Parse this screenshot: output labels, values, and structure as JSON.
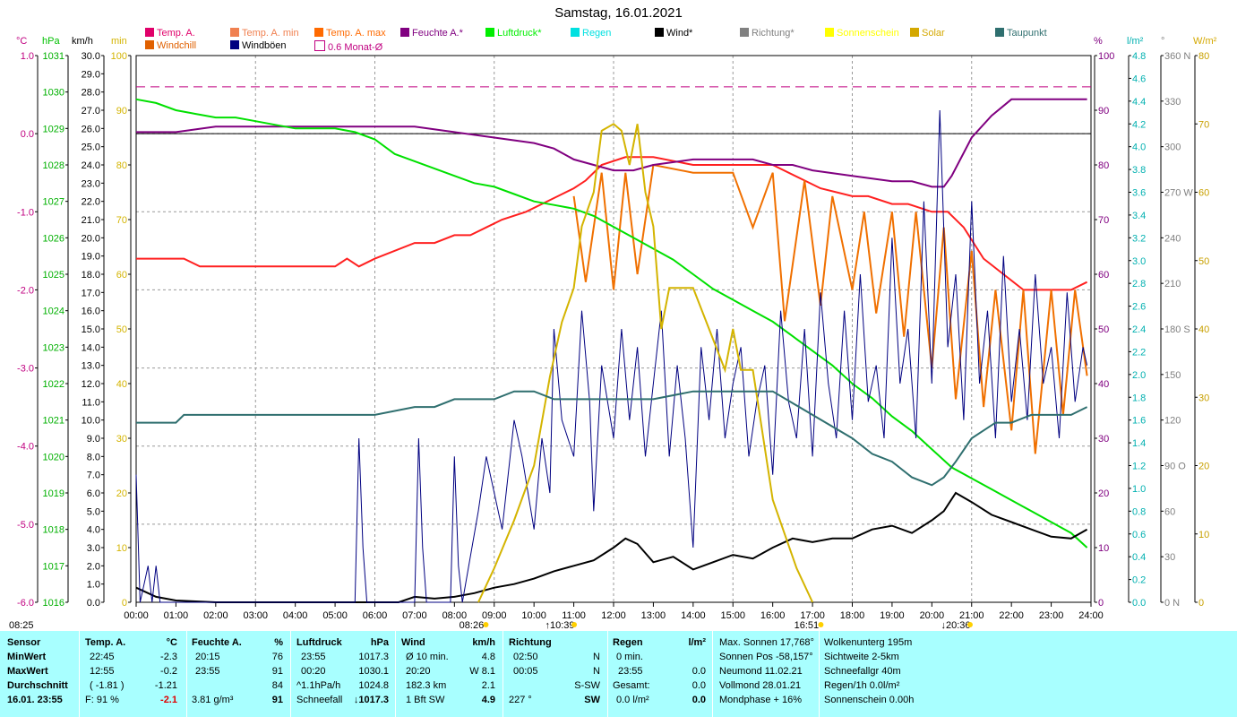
{
  "title": "Samstag, 16.01.2021",
  "legend": [
    {
      "label": "Temp. A.",
      "color": "#e0006a"
    },
    {
      "label": "Temp. A. min",
      "color": "#f08050"
    },
    {
      "label": "Temp. A. max",
      "color": "#ff6a00"
    },
    {
      "label": "Feuchte A.*",
      "color": "#800080"
    },
    {
      "label": "Luftdruck*",
      "color": "#00ee00"
    },
    {
      "label": "Regen",
      "color": "#00e0e0"
    },
    {
      "label": "Wind*",
      "color": "#000000"
    },
    {
      "label": "Richtung*",
      "color": "#808080"
    },
    {
      "label": "Sonnenschein",
      "color": "#ffff00"
    },
    {
      "label": "Solar",
      "color": "#d4a800"
    },
    {
      "label": "Taupunkt",
      "color": "#2f6f6f"
    },
    {
      "label": "Windchill",
      "color": "#e06000"
    },
    {
      "label": "Windböen",
      "color": "#000080"
    },
    {
      "label": "0.6 Monat-Ø",
      "color": "#c00080"
    }
  ],
  "units": {
    "temp": "°C",
    "hpa": "hPa",
    "kmh": "km/h",
    "min": "min",
    "pct": "%",
    "lm2": "l/m²",
    "deg": "°",
    "wm2": "W/m²"
  },
  "chart_data": {
    "type": "line",
    "x_ticks": [
      "00:00",
      "01:00",
      "02:00",
      "03:00",
      "04:00",
      "05:00",
      "06:00",
      "07:00",
      "08:00",
      "09:00",
      "10:00",
      "11:00",
      "12:00",
      "13:00",
      "14:00",
      "15:00",
      "16:00",
      "17:00",
      "18:00",
      "19:00",
      "20:00",
      "21:00",
      "22:00",
      "23:00",
      "24:00"
    ],
    "axes": {
      "temp": {
        "ticks": [
          "1.0",
          "0.0",
          "-1.0",
          "-2.0",
          "-3.0",
          "-4.0",
          "-5.0",
          "-6.0"
        ],
        "range": [
          -6,
          1
        ]
      },
      "hpa": {
        "ticks": [
          "1031",
          "1030",
          "1029",
          "1028",
          "1027",
          "1026",
          "1025",
          "1024",
          "1023",
          "1022",
          "1021",
          "1020",
          "1019",
          "1018",
          "1017",
          "1016"
        ],
        "range": [
          1016,
          1031
        ]
      },
      "kmh": {
        "ticks": [
          "30.0",
          "29.0",
          "28.0",
          "27.0",
          "26.0",
          "25.0",
          "24.0",
          "23.0",
          "22.0",
          "21.0",
          "20.0",
          "19.0",
          "18.0",
          "17.0",
          "16.0",
          "15.0",
          "14.0",
          "13.0",
          "12.0",
          "11.0",
          "10.0",
          "9.0",
          "8.0",
          "7.0",
          "6.0",
          "5.0",
          "4.0",
          "3.0",
          "2.0",
          "1.0",
          "0.0"
        ],
        "range": [
          0,
          30
        ]
      },
      "min": {
        "ticks": [
          "100",
          "90",
          "80",
          "70",
          "60",
          "50",
          "40",
          "30",
          "20",
          "10",
          "0"
        ],
        "range": [
          0,
          100
        ]
      },
      "pct": {
        "ticks": [
          "100",
          "90",
          "80",
          "70",
          "60",
          "50",
          "40",
          "30",
          "20",
          "10",
          "0"
        ],
        "range": [
          0,
          100
        ]
      },
      "lm2": {
        "ticks": [
          "4.8",
          "4.6",
          "4.4",
          "4.2",
          "4.0",
          "3.8",
          "3.6",
          "3.4",
          "3.2",
          "3.0",
          "2.8",
          "2.6",
          "2.4",
          "2.2",
          "2.0",
          "1.8",
          "1.6",
          "1.4",
          "1.2",
          "1.0",
          "0.8",
          "0.6",
          "0.4",
          "0.2",
          "0.0"
        ],
        "range": [
          0,
          5
        ]
      },
      "deg": {
        "ticks": [
          "360 N",
          "330",
          "300",
          "270 W",
          "240",
          "210",
          "180 S",
          "150",
          "120",
          "90 O",
          "60",
          "30",
          "0 N"
        ],
        "range": [
          0,
          360
        ]
      },
      "wm2": {
        "ticks": [
          "80",
          "70",
          "60",
          "50",
          "40",
          "30",
          "20",
          "10",
          "0"
        ],
        "range": [
          0,
          80
        ]
      }
    },
    "series": [
      {
        "name": "Temp. A.",
        "axis": "temp",
        "color": "#ff2020",
        "x": [
          0,
          0.5,
          1.2,
          1.6,
          2.5,
          5,
          5.3,
          5.6,
          6,
          7,
          7.5,
          8,
          8.4,
          8.8,
          9.2,
          9.8,
          10.2,
          10.6,
          11,
          11.3,
          11.7,
          12.3,
          13,
          14,
          14.3,
          14.8,
          15,
          15.5,
          16,
          16.8,
          17.2,
          18,
          18.4,
          19,
          19.4,
          20,
          20.4,
          20.8,
          21.3,
          21.8,
          22.3,
          23,
          23.5,
          23.9
        ],
        "y": [
          -1.6,
          -1.6,
          -1.6,
          -1.7,
          -1.7,
          -1.7,
          -1.6,
          -1.7,
          -1.6,
          -1.4,
          -1.4,
          -1.3,
          -1.3,
          -1.2,
          -1.1,
          -1.0,
          -0.9,
          -0.8,
          -0.7,
          -0.6,
          -0.4,
          -0.3,
          -0.3,
          -0.4,
          -0.4,
          -0.4,
          -0.4,
          -0.4,
          -0.4,
          -0.6,
          -0.7,
          -0.8,
          -0.8,
          -0.9,
          -0.9,
          -1.0,
          -1.0,
          -1.2,
          -1.6,
          -1.8,
          -2.0,
          -2.0,
          -2.0,
          -1.9
        ]
      },
      {
        "name": "Windchill",
        "axis": "temp",
        "color": "#f07000",
        "x": [
          11,
          11.3,
          11.7,
          12,
          12.3,
          12.6,
          13,
          14,
          15,
          15.5,
          16,
          16.3,
          16.8,
          17.2,
          17.5,
          18,
          18.3,
          18.6,
          19,
          19.3,
          19.6,
          20,
          20.3,
          20.6,
          21,
          21.3,
          21.6,
          22,
          22.3,
          22.6,
          23,
          23.3,
          23.6,
          23.9
        ],
        "y": [
          -0.8,
          -1.9,
          -0.5,
          -2.0,
          -0.5,
          -1.8,
          -0.4,
          -0.5,
          -0.5,
          -1.2,
          -0.5,
          -2.4,
          -0.6,
          -2.2,
          -0.8,
          -2.0,
          -1.0,
          -2.3,
          -1.0,
          -2.6,
          -1.0,
          -3.0,
          -1.2,
          -3.4,
          -1.5,
          -3.5,
          -2.0,
          -3.8,
          -2.0,
          -4.1,
          -2.0,
          -3.6,
          -2.0,
          -3.1
        ]
      },
      {
        "name": "Feuchte A.*",
        "axis": "pct",
        "color": "#800080",
        "x": [
          0,
          1,
          2,
          3,
          4,
          5,
          6,
          7,
          8,
          9,
          10,
          10.5,
          11,
          11.5,
          12,
          12.5,
          13,
          14,
          14.5,
          15,
          15.5,
          16,
          16.5,
          17,
          18,
          19,
          19.5,
          20,
          20.3,
          20.5,
          21,
          21.5,
          22,
          22.5,
          23,
          23.9
        ],
        "y": [
          86,
          86,
          87,
          87,
          87,
          87,
          87,
          87,
          86,
          85,
          84,
          83,
          81,
          80,
          79,
          79,
          80,
          81,
          81,
          81,
          81,
          80,
          80,
          79,
          78,
          77,
          77,
          76,
          76,
          78,
          85,
          89,
          92,
          92,
          92,
          92
        ]
      },
      {
        "name": "Luftdruck*",
        "axis": "hpa",
        "color": "#00e000",
        "x": [
          0,
          0.5,
          1,
          1.5,
          2,
          2.5,
          3,
          3.5,
          4,
          4.5,
          5,
          5.5,
          6,
          6.5,
          7,
          7.5,
          8,
          8.5,
          9,
          9.5,
          10,
          10.5,
          11,
          11.5,
          12,
          12.5,
          13,
          13.5,
          14,
          14.5,
          15,
          15.5,
          16,
          16.5,
          17,
          17.5,
          18,
          18.5,
          19,
          19.5,
          20,
          20.5,
          21,
          21.5,
          22,
          22.5,
          23,
          23.5,
          23.9
        ],
        "y": [
          1029.8,
          1029.7,
          1029.5,
          1029.4,
          1029.3,
          1029.3,
          1029.2,
          1029.1,
          1029.0,
          1029.0,
          1029.0,
          1028.9,
          1028.7,
          1028.3,
          1028.1,
          1027.9,
          1027.7,
          1027.5,
          1027.4,
          1027.2,
          1027.0,
          1026.9,
          1026.8,
          1026.6,
          1026.3,
          1026.0,
          1025.7,
          1025.4,
          1025.0,
          1024.6,
          1024.3,
          1024.0,
          1023.7,
          1023.3,
          1022.9,
          1022.5,
          1022.0,
          1021.6,
          1021.1,
          1020.7,
          1020.2,
          1019.7,
          1019.4,
          1019.1,
          1018.8,
          1018.5,
          1018.2,
          1017.9,
          1017.5
        ]
      },
      {
        "name": "Wind*",
        "axis": "kmh",
        "color": "#000000",
        "x": [
          0,
          0.5,
          1,
          2,
          6,
          6.6,
          7,
          7.5,
          8,
          8.5,
          9,
          9.5,
          10,
          10.5,
          11,
          11.5,
          12,
          12.3,
          12.6,
          13,
          13.5,
          14,
          14.5,
          15,
          15.5,
          16,
          16.5,
          17,
          17.5,
          18,
          18.5,
          19,
          19.5,
          20,
          20.3,
          20.6,
          21,
          21.5,
          22,
          22.5,
          23,
          23.5,
          23.9
        ],
        "y": [
          0.8,
          0.3,
          0.1,
          0,
          0,
          0,
          0.3,
          0.2,
          0.3,
          0.5,
          0.8,
          1.0,
          1.3,
          1.7,
          2.0,
          2.3,
          3.0,
          3.5,
          3.2,
          2.2,
          2.5,
          1.8,
          2.2,
          2.6,
          2.4,
          3.0,
          3.5,
          3.3,
          3.5,
          3.5,
          4.0,
          4.2,
          3.8,
          4.5,
          5.0,
          6.0,
          5.5,
          4.8,
          4.4,
          4.0,
          3.6,
          3.5,
          4.0
        ]
      },
      {
        "name": "Windböen",
        "axis": "kmh",
        "color": "#000080",
        "x": [
          0,
          0.1,
          0.2,
          0.3,
          0.4,
          0.5,
          0.6,
          5.5,
          5.6,
          5.7,
          5.8,
          7,
          7.1,
          7.2,
          7.3,
          7.9,
          8,
          8.1,
          8.2,
          8.6,
          8.8,
          9,
          9.2,
          9.5,
          9.7,
          10,
          10.2,
          10.4,
          10.5,
          10.7,
          11,
          11.2,
          11.4,
          11.5,
          11.7,
          12,
          12.2,
          12.4,
          12.6,
          12.8,
          13,
          13.2,
          13.4,
          13.6,
          13.8,
          14,
          14.2,
          14.4,
          14.6,
          14.8,
          15,
          15.2,
          15.4,
          15.6,
          15.8,
          16,
          16.2,
          16.4,
          16.6,
          16.8,
          17,
          17.2,
          17.4,
          17.6,
          17.8,
          18,
          18.2,
          18.4,
          18.6,
          18.8,
          19,
          19.2,
          19.4,
          19.6,
          19.8,
          20,
          20.2,
          20.4,
          20.6,
          20.8,
          21,
          21.2,
          21.4,
          21.6,
          21.8,
          22,
          22.2,
          22.4,
          22.6,
          22.8,
          23,
          23.2,
          23.4,
          23.6,
          23.8,
          23.9
        ],
        "y": [
          7,
          0,
          1,
          2,
          0,
          2,
          0,
          0,
          9,
          3,
          0,
          0,
          9,
          3,
          0,
          0,
          8,
          2,
          0,
          5,
          8,
          6,
          4,
          10,
          8,
          4,
          9,
          6,
          15,
          10,
          8,
          16,
          11,
          5,
          13,
          9,
          15,
          10,
          14,
          8,
          12,
          16,
          8,
          13,
          9,
          3,
          14,
          10,
          15,
          9,
          12,
          14,
          8,
          11,
          13,
          7,
          16,
          11,
          9,
          15,
          8,
          17,
          12,
          9,
          16,
          10,
          18,
          11,
          13,
          9,
          20,
          12,
          15,
          9,
          22,
          12,
          27,
          14,
          18,
          10,
          22,
          12,
          16,
          9,
          19,
          11,
          15,
          10,
          18,
          12,
          14,
          9,
          17,
          11,
          14,
          13
        ]
      },
      {
        "name": "Solar",
        "axis": "wm2",
        "color": "#d4b400",
        "x": [
          8.6,
          9,
          9.5,
          10,
          10.4,
          10.7,
          11,
          11.2,
          11.5,
          11.7,
          12,
          12.2,
          12.4,
          12.6,
          12.8,
          13,
          13.2,
          13.4,
          13.6,
          13.8,
          14,
          14.4,
          14.8,
          15,
          15.2,
          15.5,
          16,
          16.3,
          16.6,
          17
        ],
        "y": [
          0,
          5,
          12,
          20,
          33,
          41,
          46,
          55,
          60,
          69,
          70,
          69,
          64,
          70,
          60,
          55,
          40,
          46,
          46,
          46,
          46,
          40,
          34,
          40,
          34,
          34,
          15,
          10,
          5,
          0
        ]
      },
      {
        "name": "Taupunkt",
        "axis": "temp",
        "color": "#2f6f6f",
        "x": [
          0,
          1,
          1.2,
          1.5,
          2,
          2.5,
          5,
          5.3,
          5.6,
          6,
          7,
          7.5,
          8,
          8.5,
          9,
          9.5,
          10,
          10.5,
          11,
          12,
          13,
          14,
          14.5,
          15,
          15.5,
          16,
          17,
          18,
          18.5,
          19,
          19.5,
          20,
          20.3,
          20.6,
          21,
          21.3,
          21.6,
          22,
          22.5,
          23,
          23.5,
          23.9
        ],
        "y": [
          -3.7,
          -3.7,
          -3.6,
          -3.6,
          -3.6,
          -3.6,
          -3.6,
          -3.6,
          -3.6,
          -3.6,
          -3.5,
          -3.5,
          -3.4,
          -3.4,
          -3.4,
          -3.3,
          -3.3,
          -3.4,
          -3.4,
          -3.4,
          -3.4,
          -3.3,
          -3.3,
          -3.3,
          -3.3,
          -3.3,
          -3.6,
          -3.9,
          -4.1,
          -4.2,
          -4.4,
          -4.5,
          -4.4,
          -4.2,
          -3.9,
          -3.8,
          -3.7,
          -3.7,
          -3.6,
          -3.6,
          -3.6,
          -3.5
        ]
      },
      {
        "name": "0.6 Monat-Ø",
        "axis": "temp",
        "color": "#c00080",
        "x": [
          0,
          24
        ],
        "y": [
          0.6,
          0.6
        ]
      }
    ],
    "sun_marks": [
      {
        "label": "08:26",
        "t": 8.43
      },
      {
        "label": "↑10:39",
        "t": 10.65
      },
      {
        "label": "16:51",
        "t": 16.85
      },
      {
        "label": "↓20:36",
        "t": 20.6
      }
    ],
    "time_left": "08:25"
  },
  "panel": {
    "rows": [
      "Sensor",
      "MinWert",
      "MaxWert",
      "Durchschnitt",
      "16.01. 23:55"
    ],
    "temp": {
      "head": "Temp. A.",
      "unit": "°C",
      "min_t": "22:45",
      "min": "-2.3",
      "max_t": "12:55",
      "max": "-0.2",
      "avg": "( -1.81 )",
      "avg2": "-1.21",
      "cur_l": "F: 91 %",
      "cur": "-2.1"
    },
    "hum": {
      "head": "Feuchte A.",
      "unit": "%",
      "min_t": "20:15",
      "min": "76",
      "max_t": "23:55",
      "max": "91",
      "avg": "84",
      "cur_l": "3.81 g/m³",
      "cur": "91"
    },
    "press": {
      "head": "Luftdruck",
      "unit": "hPa",
      "min_t": "23:55",
      "min": "1017.3",
      "max_t": "00:20",
      "max": "1030.1",
      "avg_l": "^1.1hPa/h",
      "avg": "1024.8",
      "cur_l": "Schneefall",
      "cur": "↓1017.3"
    },
    "wind": {
      "head": "Wind",
      "unit": "km/h",
      "r1l": "Ø 10 min.",
      "r1": "4.8",
      "r2l": "20:20",
      "r2": "W 8.1",
      "r3l": "182.3 km",
      "r3": "2.1",
      "r4l": "1 Bft SW",
      "r4": "4.9"
    },
    "dir": {
      "head": "Richtung",
      "r1l": "02:50",
      "r1": "N",
      "r2l": "00:05",
      "r2": "N",
      "r3": "S-SW",
      "r4l": "227 °",
      "r4": "SW"
    },
    "rain": {
      "head": "Regen",
      "unit": "l/m²",
      "r1l": "0 min.",
      "r2l": "23:55",
      "r2": "0.0",
      "r3l": "Gesamt:",
      "r3": "0.0",
      "r4l": "0.0 l/m²",
      "r4": "0.0"
    },
    "astro": [
      "Max. Sonnen 17,768°",
      "Sonnen Pos  -58,157°",
      "Neumond      11.02.21",
      "Vollmond      28.01.21",
      "Mondphase      + 16%"
    ],
    "clouds": [
      "Wolkenunterg   195m",
      "Sichtweite       2-5km",
      "Schneefallgr       40m",
      "Regen/1h      0.0l/m²",
      "Sonnenschein  0.00h"
    ]
  }
}
